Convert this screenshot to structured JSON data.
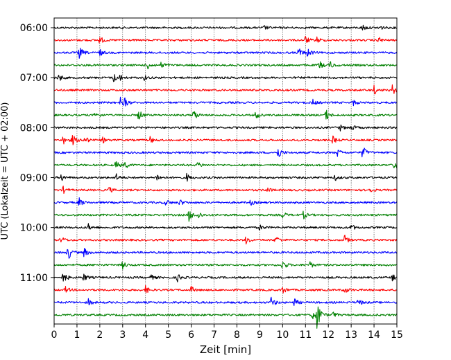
{
  "chart_data": {
    "type": "seismogram-helicorder",
    "xlabel": "Zeit  [min]",
    "ylabel": "UTC (Lokalzeit = UTC + 02:00)",
    "xlim": [
      0,
      15
    ],
    "x_ticks": [
      0,
      1,
      2,
      3,
      4,
      5,
      6,
      7,
      8,
      9,
      10,
      11,
      12,
      13,
      14,
      15
    ],
    "x_tick_labels": [
      "0",
      "1",
      "2",
      "3",
      "4",
      "5",
      "6",
      "7",
      "8",
      "9",
      "10",
      "11",
      "12",
      "13",
      "14",
      "15"
    ],
    "y_tick_labels": [
      "06:00",
      "07:00",
      "08:00",
      "09:00",
      "10:00",
      "11:00"
    ],
    "y_tick_rows": [
      0,
      4,
      8,
      12,
      16,
      20
    ],
    "grid": "vertical dotted lines at each minute",
    "colors": [
      "#000000",
      "#ff0000",
      "#0000ff",
      "#008000"
    ],
    "series": [
      {
        "label": "06:00",
        "events": [
          [
            13.5,
            0.5
          ],
          [
            14.2,
            0.5
          ],
          [
            9.2,
            0.3
          ]
        ]
      },
      {
        "label": "06:15",
        "events": [
          [
            2.0,
            0.6
          ],
          [
            11.0,
            0.6
          ],
          [
            11.5,
            0.5
          ],
          [
            14.2,
            0.5
          ]
        ]
      },
      {
        "label": "06:30",
        "events": [
          [
            1.1,
            1.0
          ],
          [
            2.0,
            0.5
          ],
          [
            10.7,
            0.8
          ],
          [
            11.1,
            0.7
          ]
        ]
      },
      {
        "label": "06:45",
        "events": [
          [
            4.1,
            0.6
          ],
          [
            4.7,
            0.6
          ],
          [
            11.6,
            0.7
          ],
          [
            12.1,
            0.5
          ]
        ]
      },
      {
        "label": "07:00",
        "events": [
          [
            0.2,
            0.6
          ],
          [
            2.6,
            0.7
          ],
          [
            2.8,
            0.7
          ],
          [
            3.9,
            0.5
          ]
        ]
      },
      {
        "label": "07:15",
        "events": [
          [
            14.0,
            0.7
          ],
          [
            14.8,
            0.8
          ]
        ]
      },
      {
        "label": "07:30",
        "events": [
          [
            2.9,
            0.8
          ],
          [
            3.1,
            0.6
          ],
          [
            11.3,
            0.5
          ],
          [
            13.1,
            0.4
          ]
        ]
      },
      {
        "label": "07:45",
        "events": [
          [
            1.8,
            0.6
          ],
          [
            3.7,
            0.9
          ],
          [
            6.1,
            0.9
          ],
          [
            8.8,
            0.7
          ],
          [
            11.9,
            0.9
          ]
        ]
      },
      {
        "label": "08:00",
        "events": [
          [
            12.5,
            0.5
          ],
          [
            13.0,
            0.5
          ]
        ]
      },
      {
        "label": "08:15",
        "events": [
          [
            0.4,
            0.7
          ],
          [
            0.8,
            0.9
          ],
          [
            1.3,
            0.8
          ],
          [
            2.1,
            0.5
          ],
          [
            4.2,
            0.5
          ],
          [
            12.2,
            0.6
          ]
        ]
      },
      {
        "label": "08:30",
        "events": [
          [
            9.8,
            1.0
          ],
          [
            12.4,
            0.6
          ],
          [
            13.5,
            1.1
          ]
        ]
      },
      {
        "label": "08:45",
        "events": [
          [
            2.7,
            0.6
          ],
          [
            3.1,
            0.6
          ],
          [
            6.3,
            0.5
          ],
          [
            14.9,
            1.0
          ]
        ]
      },
      {
        "label": "09:00",
        "events": [
          [
            0.3,
            0.6
          ],
          [
            2.7,
            0.6
          ],
          [
            4.5,
            0.6
          ],
          [
            5.8,
            0.6
          ],
          [
            12.3,
            0.4
          ]
        ]
      },
      {
        "label": "09:15",
        "events": [
          [
            0.4,
            0.5
          ],
          [
            2.4,
            0.5
          ],
          [
            9.3,
            0.5
          ],
          [
            13.8,
            0.4
          ]
        ]
      },
      {
        "label": "09:30",
        "events": [
          [
            1.1,
            0.7
          ],
          [
            4.9,
            0.5
          ],
          [
            5.5,
            0.5
          ],
          [
            8.6,
            0.4
          ]
        ]
      },
      {
        "label": "09:45",
        "events": [
          [
            5.9,
            1.0
          ],
          [
            6.3,
            0.6
          ],
          [
            10.0,
            0.5
          ],
          [
            10.9,
            0.6
          ]
        ]
      },
      {
        "label": "10:00",
        "events": [
          [
            1.5,
            0.5
          ],
          [
            9.0,
            0.4
          ],
          [
            13.0,
            0.5
          ]
        ]
      },
      {
        "label": "10:15",
        "events": [
          [
            0.3,
            0.6
          ],
          [
            8.4,
            0.6
          ],
          [
            9.7,
            0.7
          ],
          [
            12.7,
            0.8
          ]
        ]
      },
      {
        "label": "10:30",
        "events": [
          [
            0.6,
            1.3
          ],
          [
            1.3,
            0.8
          ]
        ]
      },
      {
        "label": "10:45",
        "events": [
          [
            3.0,
            0.6
          ],
          [
            10.0,
            0.9
          ],
          [
            11.2,
            0.5
          ]
        ]
      },
      {
        "label": "11:00",
        "events": [
          [
            0.4,
            1.0
          ],
          [
            1.3,
            0.6
          ],
          [
            4.2,
            0.5
          ],
          [
            5.4,
            0.6
          ],
          [
            14.8,
            0.5
          ]
        ]
      },
      {
        "label": "11:15",
        "events": [
          [
            0.5,
            0.5
          ],
          [
            4.0,
            0.6
          ],
          [
            6.0,
            0.5
          ],
          [
            10.0,
            0.6
          ],
          [
            12.7,
            0.6
          ]
        ]
      },
      {
        "label": "11:30",
        "events": [
          [
            1.5,
            0.5
          ],
          [
            9.5,
            0.9
          ],
          [
            10.5,
            0.7
          ],
          [
            13.3,
            0.6
          ]
        ]
      },
      {
        "label": "11:45",
        "events": [
          [
            11.3,
            0.6
          ],
          [
            11.5,
            2.6
          ],
          [
            12.2,
            0.5
          ]
        ]
      }
    ]
  }
}
